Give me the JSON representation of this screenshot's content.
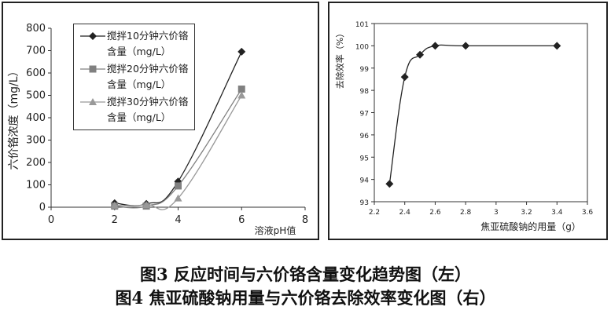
{
  "chart_data": [
    {
      "type": "line",
      "x_label": "溶液pH值",
      "y_label": "六价铬浓度（mg/L）",
      "xlim": [
        0,
        8
      ],
      "xticks": [
        0,
        2,
        4,
        6,
        8
      ],
      "ylim": [
        0,
        800
      ],
      "yticks": [
        0,
        100,
        200,
        300,
        400,
        500,
        600,
        700,
        800
      ],
      "grid": false,
      "legend": "upper-left",
      "x": [
        2,
        3,
        4,
        6
      ],
      "series": [
        {
          "name": "搅拌10分钟六价铬含量（mg/L）",
          "color": "#222222",
          "marker": "diamond",
          "values": [
            18,
            15,
            115,
            695
          ]
        },
        {
          "name": "搅拌20分钟六价铬含量（mg/L）",
          "color": "#808080",
          "marker": "square",
          "values": [
            5,
            5,
            95,
            528
          ]
        },
        {
          "name": "搅拌30分钟六价铬含量（mg/L）",
          "color": "#999999",
          "marker": "triangle",
          "values": [
            8,
            10,
            40,
            500
          ]
        }
      ]
    },
    {
      "type": "line",
      "x_label": "焦亚硫酸钠的用量（g）",
      "y_label": "去除效率（%）",
      "xlim": [
        2.2,
        3.6
      ],
      "xticks": [
        2.2,
        2.4,
        2.6,
        2.8,
        3,
        3.2,
        3.4,
        3.6
      ],
      "ylim": [
        93,
        101
      ],
      "yticks": [
        93,
        94,
        95,
        96,
        97,
        98,
        99,
        100,
        101
      ],
      "grid": false,
      "x": [
        2.3,
        2.4,
        2.5,
        2.6,
        2.8,
        3.4
      ],
      "series": [
        {
          "color": "#222222",
          "marker": "diamond",
          "values": [
            93.8,
            98.6,
            99.6,
            100,
            100,
            100
          ]
        }
      ]
    }
  ],
  "captions": [
    "图3 反应时间与六价铬含量变化趋势图（左）",
    "图4 焦亚硫酸钠用量与六价铬去除效率变化图（右）"
  ]
}
